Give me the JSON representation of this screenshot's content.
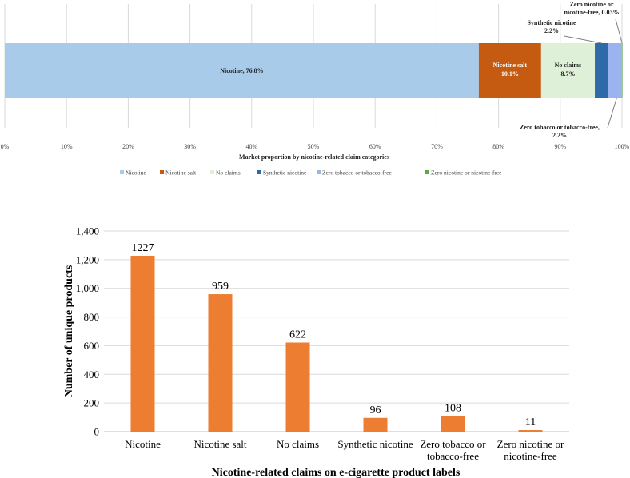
{
  "chart_data": [
    {
      "type": "bar",
      "orientation": "horizontal-stacked",
      "title": "",
      "xlabel": "Market proportion by nicotine-related claim categories",
      "ylabel": "",
      "xlim": [
        0,
        100
      ],
      "x_ticks": [
        "0%",
        "10%",
        "20%",
        "30%",
        "40%",
        "50%",
        "60%",
        "70%",
        "80%",
        "90%",
        "100%"
      ],
      "legend_position": "bottom",
      "series": [
        {
          "name": "Nicotine",
          "value": 76.8,
          "color": "#a9cbea",
          "label_lines": [
            "Nicotine, 76.8%"
          ]
        },
        {
          "name": "Nicotine salt",
          "value": 10.1,
          "color": "#c55a11",
          "label_lines": [
            "Nicotine salt",
            "10.1%"
          ]
        },
        {
          "name": "No claims",
          "value": 8.7,
          "color": "#dff0d8",
          "label_lines": [
            "No claims",
            "8.7%"
          ]
        },
        {
          "name": "Synthetic nicotine",
          "value": 2.2,
          "color": "#2e6aa8",
          "label_lines": [
            "Synthetic nicotine",
            "2.2%"
          ]
        },
        {
          "name": "Zero tobacco or tobacco-free",
          "value": 2.2,
          "color": "#9db3ef",
          "label_lines": [
            "Zero tobacco or tobacco-free,",
            "2.2%"
          ]
        },
        {
          "name": "Zero nicotine or nicotine-free",
          "value": 0.03,
          "color": "#5ca845",
          "label_lines": [
            "Zero nicotine or",
            "nicotine-free, 0.03%"
          ]
        }
      ]
    },
    {
      "type": "bar",
      "title": "",
      "xlabel": "Nicotine-related claims on e-cigarette product labels",
      "ylabel": "Number of unique products",
      "ylim": [
        0,
        1400
      ],
      "y_ticks": [
        "0",
        "200",
        "400",
        "600",
        "800",
        "1,000",
        "1,200",
        "1,400"
      ],
      "grid": true,
      "categories": [
        [
          "Nicotine"
        ],
        [
          "Nicotine salt"
        ],
        [
          "No claims"
        ],
        [
          "Synthetic nicotine"
        ],
        [
          "Zero tobacco or",
          "tobacco-free"
        ],
        [
          "Zero nicotine or",
          "nicotine-free"
        ]
      ],
      "values": [
        1227,
        959,
        622,
        96,
        108,
        11
      ],
      "color": "#ed7d31"
    }
  ]
}
